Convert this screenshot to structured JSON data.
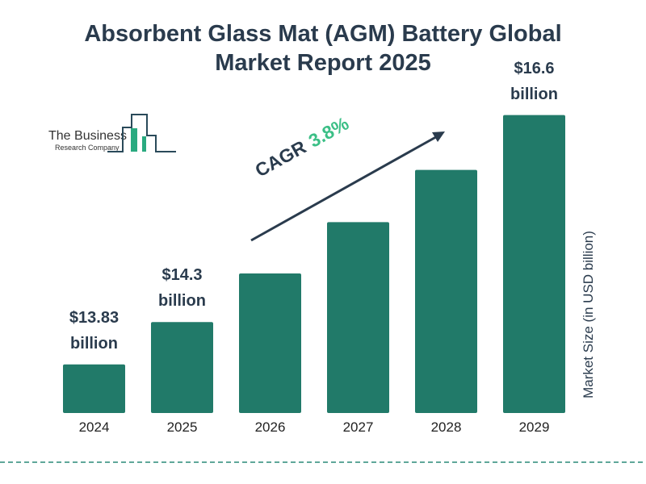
{
  "title_line1": "Absorbent Glass Mat (AGM) Battery Global",
  "title_line2": "Market Report 2025",
  "logo": {
    "line1": "The Business",
    "line2": "Research Company"
  },
  "cagr": {
    "label": "CAGR",
    "value": "3.8%"
  },
  "colors": {
    "bar": "#217a69",
    "text": "#2a3b4d",
    "accent": "#3bbf86"
  },
  "chart_data": {
    "type": "bar",
    "categories": [
      "2024",
      "2025",
      "2026",
      "2027",
      "2028",
      "2029"
    ],
    "values": [
      13.83,
      14.3,
      14.84,
      15.41,
      15.99,
      16.6
    ],
    "data_labels": [
      {
        "index": 0,
        "line1": "$13.83",
        "line2": "billion"
      },
      {
        "index": 1,
        "line1": "$14.3",
        "line2": "billion"
      },
      {
        "index": 5,
        "line1": "$16.6",
        "line2": "billion"
      }
    ],
    "ylabel": "Market Size (in USD billion)",
    "xlabel": "",
    "grid": false
  }
}
